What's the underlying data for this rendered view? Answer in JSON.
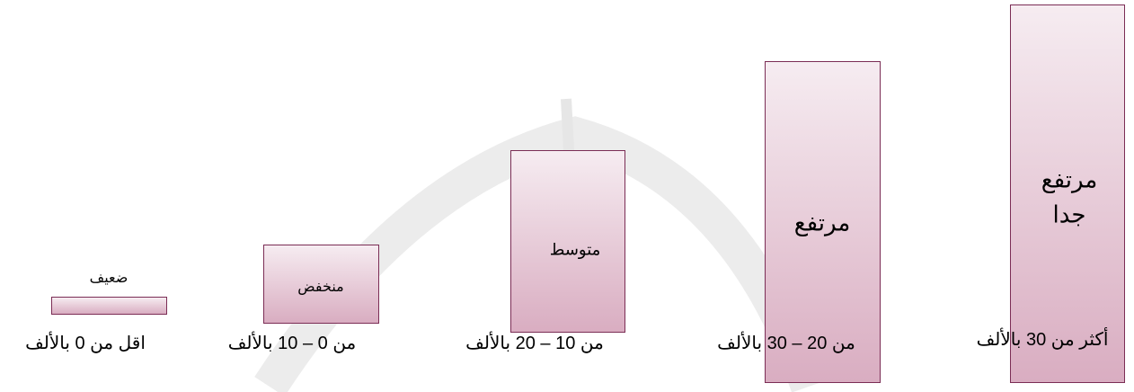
{
  "levels": [
    {
      "label": [
        "ضعيف"
      ],
      "range": "اقل من 0 بالألف"
    },
    {
      "label": [
        "منخفض"
      ],
      "range": "من 0 – 10 بالألف"
    },
    {
      "label": [
        "متوسط"
      ],
      "range": "من 10 – 20 بالألف"
    },
    {
      "label": [
        "مرتفع"
      ],
      "range": "من 20 – 30 بالألف"
    },
    {
      "label": [
        "مرتفع",
        "جدا"
      ],
      "range": "أكثر من 30 بالألف"
    }
  ]
}
